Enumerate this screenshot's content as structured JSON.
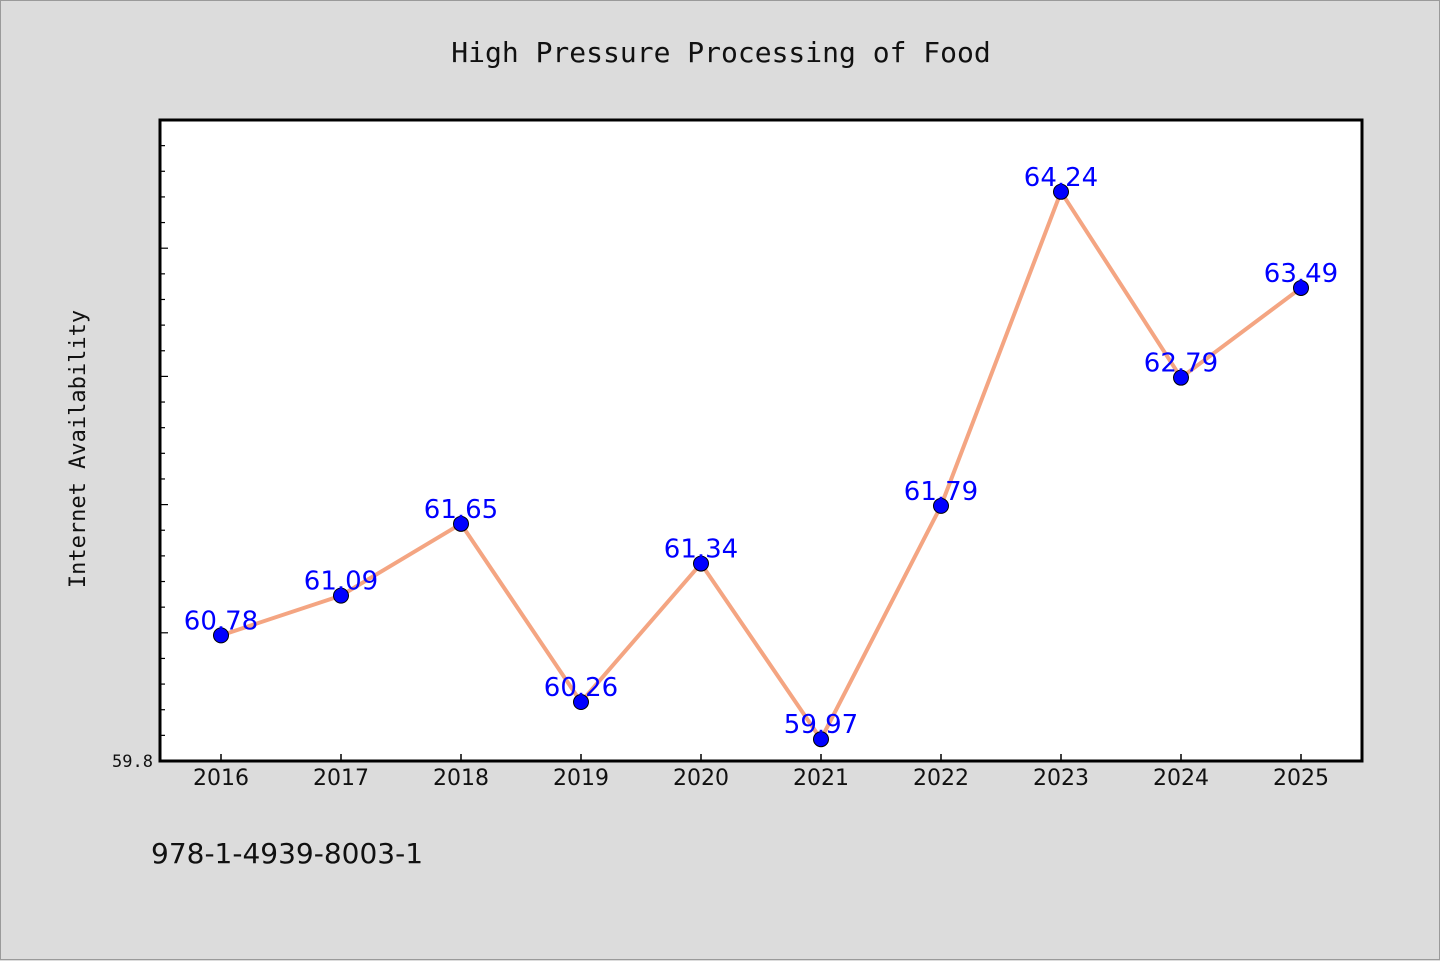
{
  "chart_data": {
    "type": "line",
    "title": "High Pressure Processing of Food",
    "xlabel": "",
    "ylabel": "Internet Availability",
    "categories": [
      "2016",
      "2017",
      "2018",
      "2019",
      "2020",
      "2021",
      "2022",
      "2023",
      "2024",
      "2025"
    ],
    "series": [
      {
        "values": [
          60.78,
          61.09,
          61.65,
          60.26,
          61.34,
          59.97,
          61.79,
          64.24,
          62.79,
          63.49
        ]
      }
    ],
    "y_tick_labels": [
      "59.8"
    ],
    "ylim": [
      59.8,
      64.8
    ],
    "grid": false,
    "legend": "none",
    "data_labels": true,
    "colors": {
      "line": "#f4a582",
      "marker": "#0000ff",
      "label": "#0000ff",
      "plot_background": "#ffffff",
      "figure_background": "#dcdcdc"
    }
  },
  "footer": {
    "isbn": "978-1-4939-8003-1"
  }
}
